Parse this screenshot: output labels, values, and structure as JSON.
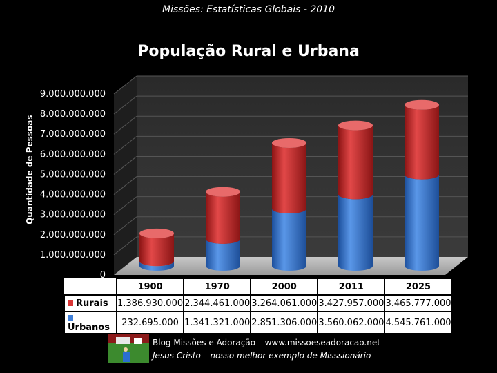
{
  "header": {
    "subtitle": "Missões: Estatísticas Globais - 2010"
  },
  "chart_data": {
    "type": "bar",
    "stacked": true,
    "title": "População Rural e Urbana",
    "ylabel": "Quantidade de Pessoas",
    "xlabel": "",
    "ylim": [
      0,
      9000000000
    ],
    "yticks": [
      "0",
      "1.000.000.000",
      "2.000.000.000",
      "3.000.000.000",
      "4.000.000.000",
      "5.000.000.000",
      "6.000.000.000",
      "7.000.000.000",
      "8.000.000.000",
      "9.000.000.000"
    ],
    "categories": [
      "1900",
      "1970",
      "2000",
      "2011",
      "2025"
    ],
    "series": [
      {
        "name": "Urbanos",
        "color": "#3f7fd9",
        "values": [
          232695000,
          1341321000,
          2851306000,
          3560062000,
          4545761000
        ],
        "labels": [
          "232.695.000",
          "1.341.321.000",
          "2.851.306.000",
          "3.560.062.000",
          "4.545.761.000"
        ]
      },
      {
        "name": "Rurais",
        "color": "#d93535",
        "values": [
          1386930000,
          2344461000,
          3264061000,
          3427957000,
          3465777000
        ],
        "labels": [
          "1.386.930.000",
          "2.344.461.000",
          "3.264.061.000",
          "3.427.957.000",
          "3.465.777.000"
        ]
      }
    ],
    "grid": true,
    "legend": "data-table"
  },
  "footer": {
    "line1": "Blog Missões e Adoração – www.missoeseadoracao.net",
    "line2": "Jesus Cristo – nosso melhor exemplo de Misssionário",
    "icon": "blog-logo-icon"
  }
}
